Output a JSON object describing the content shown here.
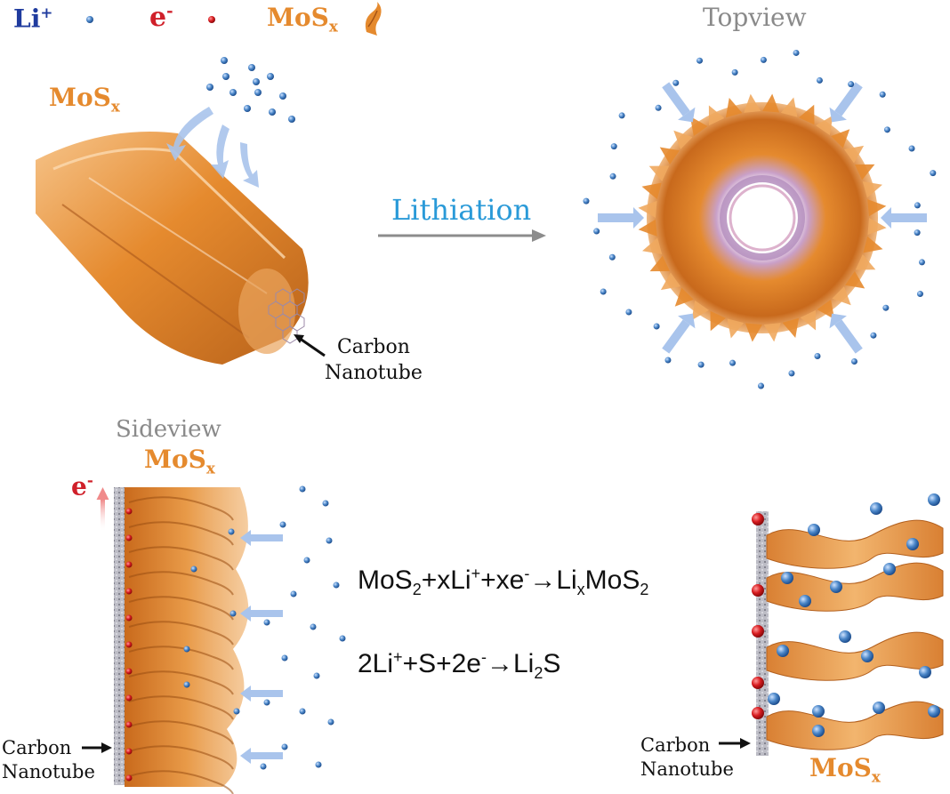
{
  "legend": {
    "li_label": "Li",
    "li_sup": "+",
    "e_label": "e",
    "e_sup": "-",
    "mos_label": "MoS",
    "mos_sub": "x"
  },
  "top_left": {
    "mos_label": "MoS",
    "mos_sub": "x",
    "cnt_line1": "Carbon",
    "cnt_line2": "Nanotube"
  },
  "center": {
    "process_label": "Lithiation"
  },
  "top_right": {
    "title": "Topview"
  },
  "bottom_left": {
    "title": "Sideview",
    "mos_label": "MoS",
    "mos_sub": "x",
    "e_label": "e",
    "e_sup": "-",
    "cnt_line1": "Carbon",
    "cnt_line2": "Nanotube"
  },
  "equations": {
    "eq1_a": "MoS",
    "eq1_a_sub": "2",
    "eq1_b": "+xLi",
    "eq1_b_sup": "+",
    "eq1_c": "+xe",
    "eq1_c_sup": "-",
    "eq1_arrow": "→",
    "eq1_d": "Li",
    "eq1_d_sub": "x",
    "eq1_e": "MoS",
    "eq1_e_sub": "2",
    "eq2_a": "2Li",
    "eq2_a_sup": "+",
    "eq2_b": "+S+2e",
    "eq2_b_sup": "-",
    "eq2_arrow": "→",
    "eq2_c": "Li",
    "eq2_c_sub": "2",
    "eq2_d": "S"
  },
  "bottom_right": {
    "cnt_line1": "Carbon",
    "cnt_line2": "Nanotube",
    "mos_label": "MoS",
    "mos_sub": "x"
  },
  "colors": {
    "li_ion": "#4a86c8",
    "electron": "#d81c20",
    "mos": "#e58a2e",
    "arrow_blue": "#a9c4ec",
    "arrow_gray": "#8c8c8c",
    "cnt": "#a8a8b8"
  }
}
